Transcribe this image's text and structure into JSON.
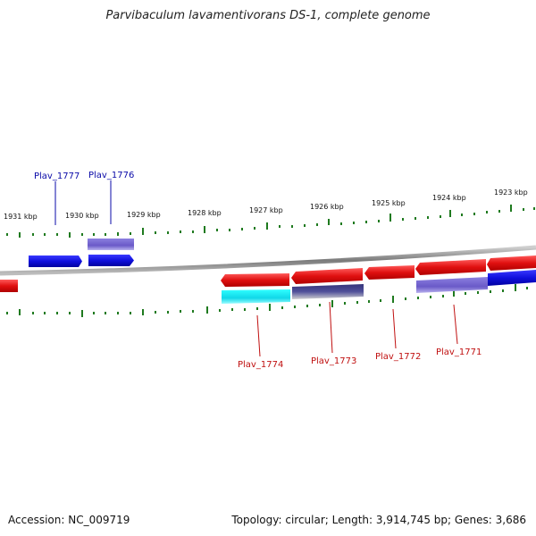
{
  "header": {
    "title": "Parvibaculum lavamentivorans DS-1, complete genome"
  },
  "footer": {
    "accession": "Accession: NC_009719",
    "summary": "Topology: circular; Length: 3,914,745 bp; Genes: 3,686"
  },
  "ticks": {
    "top": [
      "1931 kbp",
      "1930 kbp",
      "1929 kbp",
      "1928 kbp",
      "1927 kbp",
      "1926 kbp",
      "1925 kbp",
      "1924 kbp",
      "1923 kbp"
    ]
  },
  "genes": {
    "plus": [
      "Plav_1777",
      "Plav_1776"
    ],
    "minus": [
      "Plav_1774",
      "Plav_1773",
      "Plav_1772",
      "Plav_1771"
    ]
  },
  "colors": {
    "forward_gene": "#1010dd",
    "reverse_gene": "#e01010",
    "forward_label": "#0a0aa8",
    "reverse_label": "#c01010",
    "tick": "#1f7a1f",
    "cds_alt": "#7a6ad0",
    "cds_cyan": "#20e8e8",
    "cds_dark": "#40408a",
    "backbone": "#8a8a8a"
  },
  "icons": [
    "genome-backbone",
    "gene-arrow"
  ]
}
